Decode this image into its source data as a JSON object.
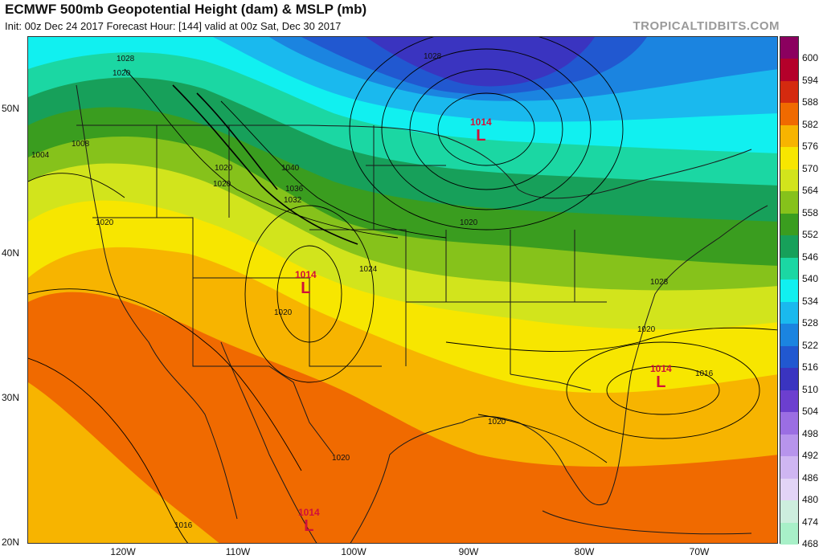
{
  "header": {
    "title": "ECMWF 500mb Geopotential Height (dam) & MSLP (mb)",
    "subtitle": "Init: 00z Dec 24 2017   Forecast Hour: [144]   valid at 00z Sat, Dec 30 2017",
    "brand": "TROPICALTIDBITS.COM"
  },
  "axes": {
    "lat_labels": [
      "50N",
      "40N",
      "30N",
      "20N"
    ],
    "lon_labels": [
      "120W",
      "110W",
      "100W",
      "90W",
      "80W",
      "70W"
    ]
  },
  "colorbar": {
    "labels": [
      "600",
      "594",
      "588",
      "582",
      "576",
      "570",
      "564",
      "558",
      "552",
      "546",
      "540",
      "534",
      "528",
      "522",
      "516",
      "510",
      "504",
      "498",
      "492",
      "486",
      "480",
      "474",
      "468"
    ],
    "colors": [
      "#8b005f",
      "#b4002a",
      "#d42a0f",
      "#f06a00",
      "#f7b400",
      "#f7e600",
      "#d2e41c",
      "#86c21b",
      "#3a9d1f",
      "#17a05a",
      "#1bd7a3",
      "#11f0f0",
      "#1ab9ee",
      "#1b84e0",
      "#2158d0",
      "#3a34c0",
      "#6c3fcf",
      "#9b6ee3",
      "#b794ec",
      "#cfb6f2",
      "#e2d4f6",
      "#cdeede",
      "#a8f0c8"
    ]
  },
  "map": {
    "isobar_labels": [
      "1028",
      "1020",
      "1004",
      "1008",
      "1020",
      "1020",
      "1040",
      "1036",
      "1032",
      "1028",
      "1020",
      "1024",
      "1020",
      "1020",
      "1028",
      "1020",
      "1016",
      "1020",
      "1020",
      "1016"
    ],
    "lows": [
      {
        "pressure": "1014",
        "symbol": "L"
      },
      {
        "pressure": "1014",
        "symbol": "L"
      },
      {
        "pressure": "1014",
        "symbol": "L"
      },
      {
        "pressure": "1014",
        "symbol": "L"
      }
    ]
  }
}
